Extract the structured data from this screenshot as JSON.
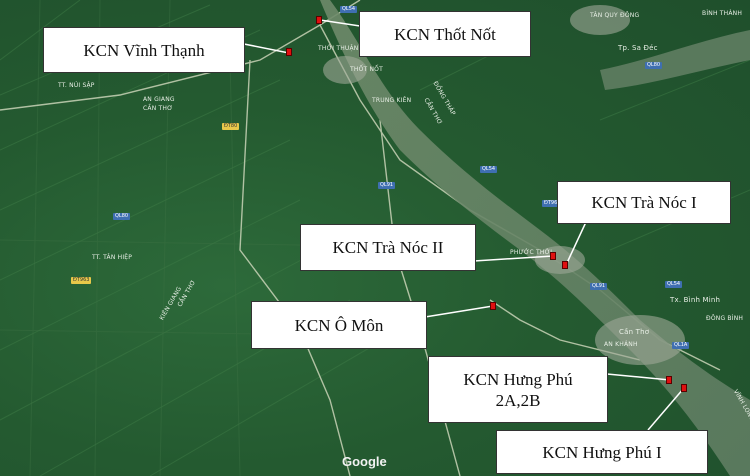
{
  "callouts": [
    {
      "id": "vinh-thanh",
      "label": "KCN Vĩnh Thạnh"
    },
    {
      "id": "thot-not",
      "label": "KCN Thốt Nốt"
    },
    {
      "id": "tra-noc-1",
      "label": "KCN Trà Nóc I"
    },
    {
      "id": "tra-noc-2",
      "label": "KCN Trà Nóc II"
    },
    {
      "id": "o-mon",
      "label": "KCN Ô Môn"
    },
    {
      "id": "hung-phu-2",
      "line1": "KCN Hưng Phú",
      "line2": "2A,2B"
    },
    {
      "id": "hung-phu-1",
      "label": "KCN Hưng Phú I"
    }
  ],
  "place_labels": {
    "an_giang": "AN GIANG",
    "can_tho_1": "CẦN THƠ",
    "dong_thap": "ĐỒNG THÁP",
    "can_tho_2": "CẦN THƠ",
    "can_tho_3": "CẦN THƠ",
    "kien_giang": "KIÊN GIANG",
    "thoi_thuan": "THỚI THUẬN",
    "thot_not": "THỐT NỐT",
    "trung_kien": "TRUNG KIÊN",
    "tt_nui_sap": "TT. NÚI SẬP",
    "tt_tan_hiep": "TT. TÂN HIỆP",
    "phuoc_thoi": "PHƯỚC THỚI",
    "tp_sa_dec": "Tp. Sa Đéc",
    "tx_binh_minh": "Tx. Bình Minh",
    "can_tho_city": "Cần Thơ",
    "an_khanh": "AN KHÁNH",
    "dong_binh": "ĐÔNG BÌNH",
    "binh_thanh": "BÌNH THÀNH",
    "tan_quy_dong": "TÂN QUY ĐÔNG",
    "vinh_long": "VĨNH LONG"
  },
  "road_shields": {
    "ql54": "QL54",
    "ql80": "QL80",
    "ql91": "QL91",
    "ql91b": "QL91",
    "ql1a": "QL1A",
    "ql54b": "QL54",
    "ql54c": "QL54",
    "ql80b": "QL80",
    "dt80": "ĐT80",
    "dt963": "ĐT963",
    "dt962": "ĐT962"
  },
  "attribution": "Google"
}
